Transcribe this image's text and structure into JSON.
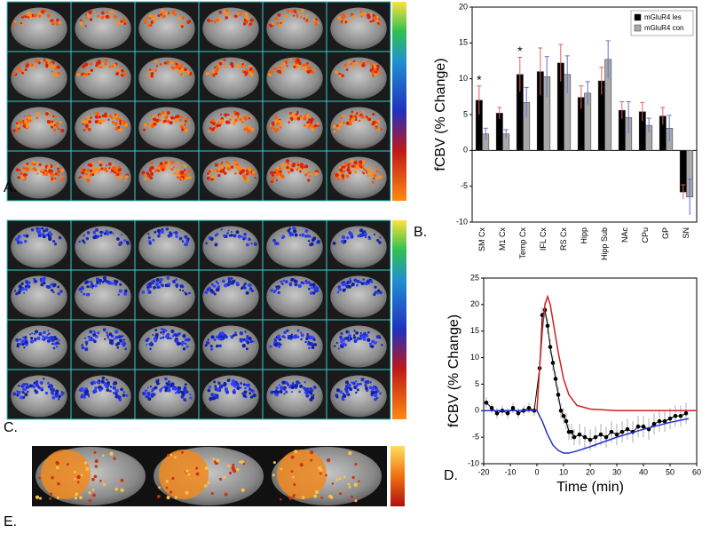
{
  "panels": {
    "a": "A.",
    "b": "B.",
    "c": "C.",
    "d": "D.",
    "e": "E."
  },
  "chart_data": [
    {
      "type": "bar",
      "ylabel": "fCBV (% Change)",
      "categories": [
        "SM Cx",
        "M1 Cx",
        "Temp Cx",
        "IFL Cx",
        "RS Cx",
        "Hipp",
        "Hipp Sub",
        "NAc",
        "CPu",
        "GP",
        "SN"
      ],
      "series": [
        {
          "name": "mGluR4 les",
          "color": "#000000",
          "error_color": "#e06060",
          "values": [
            7,
            5.2,
            10.6,
            11,
            12.2,
            7.4,
            9.7,
            5.6,
            5.4,
            4.8,
            -5.8
          ],
          "errors": [
            2,
            0.8,
            2.4,
            3.3,
            2.6,
            1.6,
            1.9,
            1.2,
            1.3,
            1.2,
            1
          ]
        },
        {
          "name": "mGluR4 con",
          "color": "#a8a8a8",
          "error_color": "#6070d0",
          "values": [
            2.3,
            2.3,
            6.7,
            10.3,
            10.6,
            8,
            12.7,
            4.6,
            3.5,
            3.1,
            -6.5
          ],
          "errors": [
            0.8,
            0.6,
            2.1,
            2.8,
            2.6,
            1.6,
            2.6,
            2.2,
            1,
            1.8,
            2.5
          ]
        }
      ],
      "annotations": [
        {
          "text": "*",
          "category": "SM Cx"
        },
        {
          "text": "*",
          "category": "Temp Cx"
        }
      ],
      "ylim": [
        -10,
        20
      ],
      "yticks": [
        -10,
        -5,
        0,
        5,
        10,
        15,
        20
      ],
      "legend": "top-right"
    },
    {
      "type": "line",
      "xlabel": "Time (min)",
      "ylabel": "fCBV (% Change)",
      "series": [
        {
          "color": "#000000",
          "marker": "circle",
          "error_color": "#999999",
          "x": [
            -19,
            -17,
            -15,
            -13,
            -11,
            -9,
            -7,
            -5,
            -3,
            -1,
            1,
            2,
            3,
            4,
            5,
            6,
            7,
            8,
            9,
            10,
            11,
            12,
            13,
            14,
            16,
            18,
            20,
            22,
            24,
            26,
            28,
            30,
            32,
            34,
            36,
            38,
            40,
            42,
            44,
            46,
            48,
            50,
            52,
            54,
            56
          ],
          "values": [
            1.5,
            0.5,
            -0.5,
            0,
            -0.5,
            0.5,
            -0.5,
            0,
            0.5,
            0,
            8,
            18,
            19,
            16,
            12,
            9,
            6,
            3,
            0,
            -1,
            -2,
            -4,
            -4,
            -5,
            -4.5,
            -5,
            -5.5,
            -5,
            -4.5,
            -5,
            -4,
            -4.5,
            -4,
            -3.5,
            -4,
            -3,
            -3,
            -3.5,
            -2.5,
            -2,
            -2,
            -1.5,
            -1,
            -1,
            -0.5
          ],
          "errors": [
            1,
            1,
            1,
            1,
            1,
            1,
            1,
            1,
            1,
            1,
            1.5,
            1.5,
            1.5,
            1.5,
            1.5,
            1.5,
            1.5,
            1.5,
            1.5,
            1.5,
            1.5,
            1.5,
            1.5,
            1.5,
            2,
            2,
            2,
            2,
            2,
            2,
            2,
            2,
            2,
            2,
            2,
            2,
            2,
            2,
            2,
            2,
            2,
            2,
            2,
            2,
            2
          ]
        },
        {
          "color": "#cc2222",
          "x": [
            -20,
            0,
            1,
            2,
            3,
            4,
            5,
            6,
            8,
            10,
            12,
            15,
            20,
            30,
            60
          ],
          "values": [
            0,
            0,
            8,
            15,
            20,
            21.5,
            20,
            17,
            11,
            6,
            3,
            1,
            0.3,
            0,
            0
          ]
        },
        {
          "color": "#2233cc",
          "x": [
            -20,
            0,
            2,
            4,
            6,
            8,
            10,
            12,
            15,
            20,
            30,
            40,
            50,
            57
          ],
          "values": [
            0,
            0,
            -2,
            -4.5,
            -6.5,
            -7.5,
            -8,
            -8,
            -7.6,
            -6.8,
            -5,
            -3.5,
            -2.2,
            -1.5
          ]
        }
      ],
      "xlim": [
        -20,
        60
      ],
      "xticks": [
        -20,
        -10,
        0,
        10,
        20,
        30,
        40,
        50,
        60
      ],
      "ylim": [
        -10,
        25
      ],
      "yticks": [
        -10,
        -5,
        0,
        5,
        10,
        15,
        20,
        25
      ]
    }
  ]
}
